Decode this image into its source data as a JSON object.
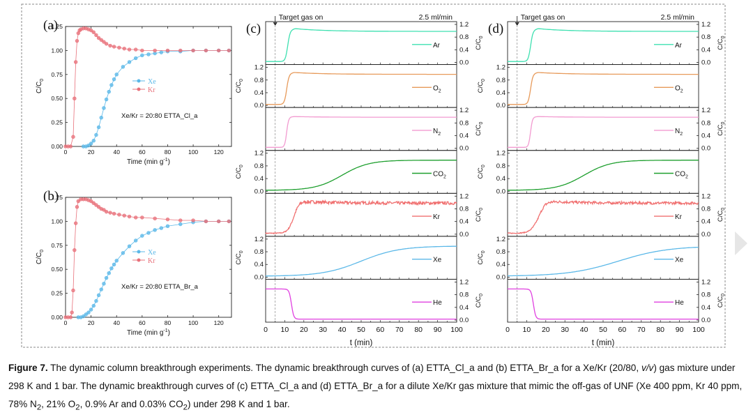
{
  "chart_data": [
    {
      "type": "scatter",
      "panel_label": "(a)",
      "xlabel": "Time (min g",
      "xlabel_sup": "-1",
      "xlabel_tail": ")",
      "ylabel": "C/C",
      "ylabel_sub": "0",
      "xlim": [
        0,
        130
      ],
      "ylim": [
        0.0,
        1.25
      ],
      "xticks": [
        "0",
        "20",
        "40",
        "60",
        "80",
        "100",
        "120"
      ],
      "yticks": [
        "0.00",
        "0.25",
        "0.50",
        "0.75",
        "1.00",
        "1.25"
      ],
      "annotation": "Xe/Kr = 20:80    ETTA_Cl_a",
      "legend": [
        "Xe",
        "Kr"
      ],
      "series": [
        {
          "name": "Xe",
          "color": "#5bb8e8",
          "x": [
            14,
            16,
            18,
            20,
            22,
            24,
            26,
            28,
            30,
            32,
            34,
            36,
            38,
            40,
            45,
            50,
            55,
            60,
            65,
            70,
            75,
            80,
            90,
            100,
            110,
            120,
            128
          ],
          "y": [
            0.0,
            0.0,
            0.01,
            0.03,
            0.06,
            0.12,
            0.2,
            0.3,
            0.4,
            0.49,
            0.57,
            0.64,
            0.7,
            0.75,
            0.83,
            0.88,
            0.92,
            0.95,
            0.96,
            0.97,
            0.98,
            0.99,
            0.99,
            1.0,
            1.0,
            1.0,
            1.0
          ]
        },
        {
          "name": "Kr",
          "color": "#e8707a",
          "x": [
            0,
            2,
            4,
            6,
            7,
            8,
            9,
            10,
            11,
            12,
            14,
            16,
            18,
            20,
            22,
            24,
            26,
            28,
            30,
            32,
            35,
            38,
            42,
            46,
            50,
            55,
            60,
            70,
            80,
            90,
            100,
            110,
            120,
            128
          ],
          "y": [
            0.0,
            0.0,
            0.0,
            0.1,
            0.5,
            0.88,
            1.1,
            1.18,
            1.21,
            1.22,
            1.23,
            1.23,
            1.22,
            1.21,
            1.19,
            1.16,
            1.13,
            1.11,
            1.09,
            1.07,
            1.05,
            1.04,
            1.03,
            1.02,
            1.01,
            1.01,
            1.0,
            1.0,
            1.0,
            1.0,
            1.0,
            1.0,
            1.0,
            1.0
          ]
        }
      ]
    },
    {
      "type": "scatter",
      "panel_label": "(b)",
      "xlabel": "Time (min g",
      "xlabel_sup": "-1",
      "xlabel_tail": ")",
      "ylabel": "C/C",
      "ylabel_sub": "0",
      "xlim": [
        0,
        130
      ],
      "ylim": [
        0.0,
        1.25
      ],
      "xticks": [
        "0",
        "20",
        "40",
        "60",
        "80",
        "100",
        "120"
      ],
      "yticks": [
        "0.00",
        "0.25",
        "0.50",
        "0.75",
        "1.00",
        "1.25"
      ],
      "annotation": "Xe/Kr = 20:80    ETTA_Br_a",
      "legend": [
        "Xe",
        "Kr"
      ],
      "series": [
        {
          "name": "Xe",
          "color": "#5bb8e8",
          "x": [
            10,
            12,
            14,
            16,
            18,
            20,
            22,
            24,
            26,
            28,
            30,
            32,
            34,
            36,
            38,
            40,
            45,
            50,
            55,
            60,
            65,
            70,
            75,
            80,
            90,
            100,
            110,
            120,
            128
          ],
          "y": [
            0.0,
            0.0,
            0.01,
            0.03,
            0.05,
            0.08,
            0.12,
            0.17,
            0.23,
            0.29,
            0.35,
            0.41,
            0.46,
            0.51,
            0.55,
            0.59,
            0.67,
            0.74,
            0.8,
            0.85,
            0.88,
            0.91,
            0.93,
            0.95,
            0.97,
            0.99,
            1.0,
            1.0,
            1.0
          ]
        },
        {
          "name": "Kr",
          "color": "#e8707a",
          "x": [
            0,
            2,
            4,
            5,
            6,
            7,
            8,
            9,
            10,
            12,
            14,
            16,
            18,
            20,
            22,
            24,
            26,
            28,
            30,
            32,
            35,
            38,
            42,
            46,
            50,
            55,
            60,
            70,
            80,
            90,
            100,
            110,
            120,
            128
          ],
          "y": [
            0.0,
            0.0,
            0.0,
            0.05,
            0.28,
            0.7,
            0.98,
            1.15,
            1.21,
            1.23,
            1.23,
            1.23,
            1.22,
            1.21,
            1.19,
            1.17,
            1.15,
            1.13,
            1.12,
            1.1,
            1.09,
            1.08,
            1.07,
            1.06,
            1.05,
            1.04,
            1.04,
            1.03,
            1.02,
            1.01,
            1.01,
            1.0,
            1.0,
            1.0
          ]
        }
      ]
    },
    {
      "type": "line",
      "panel_label": "(c)",
      "header_left": "Target gas on",
      "header_right": "2.5 ml/min",
      "xlabel": "t (min)",
      "xlim": [
        0,
        100
      ],
      "xticks": [
        "0",
        "10",
        "20",
        "30",
        "40",
        "50",
        "60",
        "70",
        "80",
        "90",
        "100"
      ],
      "ylabel": "C/C",
      "ylabel_sub": "0",
      "yticks": [
        "0.0",
        "0.4",
        "0.8",
        "1.2"
      ],
      "ylim": [
        0.0,
        1.2
      ],
      "series": [
        {
          "name": "Ar",
          "sub": "",
          "color": "#3ee0b0",
          "rise_center": 11.5,
          "rise_width": 0.6,
          "overshoot": 0.12,
          "noise": 0.0
        },
        {
          "name": "O",
          "sub": "2",
          "color": "#e79a5a",
          "rise_center": 11.0,
          "rise_width": 0.6,
          "overshoot": 0.08,
          "noise": 0.0
        },
        {
          "name": "N",
          "sub": "2",
          "color": "#f29ad0",
          "rise_center": 11.0,
          "rise_width": 0.5,
          "overshoot": 0.03,
          "noise": 0.0
        },
        {
          "name": "CO",
          "sub": "2",
          "color": "#1e9f2e",
          "rise_center": 40.0,
          "rise_width": 7.0,
          "overshoot": 0.0,
          "noise": 0.0
        },
        {
          "name": "Kr",
          "sub": "",
          "color": "#f07070",
          "rise_center": 14.5,
          "rise_width": 1.5,
          "overshoot": 0.08,
          "noise": 0.07
        },
        {
          "name": "Xe",
          "sub": "",
          "color": "#5bb8e8",
          "rise_center": 50.0,
          "rise_width": 10.0,
          "overshoot": 0.0,
          "noise": 0.0
        },
        {
          "name": "He",
          "sub": "",
          "color": "#e040e0",
          "fall_center": 13.5,
          "fall_width": 0.6,
          "noise": 0.0
        }
      ]
    },
    {
      "type": "line",
      "panel_label": "(d)",
      "header_left": "Target gas on",
      "header_right": "2.5 ml/min",
      "xlabel": "t (min)",
      "xlim": [
        0,
        100
      ],
      "xticks": [
        "0",
        "10",
        "20",
        "30",
        "40",
        "50",
        "60",
        "70",
        "80",
        "90",
        "100"
      ],
      "ylabel": "C/C",
      "ylabel_sub": "0",
      "yticks": [
        "0.0",
        "0.4",
        "0.8",
        "1.2"
      ],
      "ylim": [
        0.0,
        1.2
      ],
      "series": [
        {
          "name": "Ar",
          "sub": "",
          "color": "#3ee0b0",
          "rise_center": 12.0,
          "rise_width": 0.6,
          "overshoot": 0.12,
          "noise": 0.0
        },
        {
          "name": "O",
          "sub": "2",
          "color": "#e79a5a",
          "rise_center": 12.0,
          "rise_width": 0.6,
          "overshoot": 0.08,
          "noise": 0.0
        },
        {
          "name": "N",
          "sub": "2",
          "color": "#f29ad0",
          "rise_center": 12.0,
          "rise_width": 0.5,
          "overshoot": 0.03,
          "noise": 0.0
        },
        {
          "name": "CO",
          "sub": "2",
          "color": "#1e9f2e",
          "rise_center": 40.0,
          "rise_width": 7.0,
          "overshoot": 0.0,
          "noise": 0.0
        },
        {
          "name": "Kr",
          "sub": "",
          "color": "#f07070",
          "rise_center": 16.0,
          "rise_width": 2.0,
          "overshoot": 0.1,
          "noise": 0.06
        },
        {
          "name": "Xe",
          "sub": "",
          "color": "#5bb8e8",
          "rise_center": 58.0,
          "rise_width": 13.0,
          "overshoot": 0.0,
          "noise": 0.0
        },
        {
          "name": "He",
          "sub": "",
          "color": "#e040e0",
          "fall_center": 13.5,
          "fall_width": 0.6,
          "noise": 0.0
        }
      ]
    }
  ],
  "caption": {
    "fig_label": "Figure 7.",
    "p1": " The dynamic column breakthrough experiments. The dynamic breakthrough curves of (a) ETTA_Cl_a and (b) ETTA_Br_a for a Xe/Kr (20/80, ",
    "p1_italic": "v/v",
    "p2": ") gas mixture under 298 K and 1 bar. The dynamic breakthrough curves of (c) ETTA_Cl_a and (d) ETTA_Br_a for a dilute Xe/Kr gas mixture that mimic the off-gas of UNF (Xe 400 ppm, Kr 40 ppm, 78% N",
    "s1": "2",
    "p3": ", 21% O",
    "s2": "2",
    "p4": ", 0.9% Ar and 0.03% CO",
    "s3": "2",
    "p5": ") under 298 K and 1 bar."
  }
}
